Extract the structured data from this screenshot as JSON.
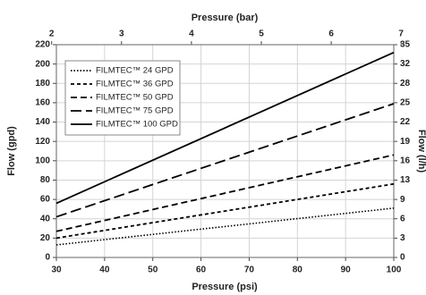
{
  "chart_data": {
    "type": "line",
    "x_label": "Pressure (psi)",
    "x2_label": "Pressure (bar)",
    "y_label": "Flow (gpd)",
    "y2_label": "Flow (l/h)",
    "xlim": [
      30,
      100
    ],
    "xticks": [
      30,
      40,
      50,
      60,
      70,
      80,
      90,
      100
    ],
    "x2lim": [
      2.068,
      6.895
    ],
    "x2ticks": [
      2,
      3,
      4,
      5,
      6,
      7
    ],
    "ylim": [
      0,
      220
    ],
    "yticks": [
      0,
      20,
      40,
      60,
      80,
      100,
      120,
      140,
      160,
      180,
      200,
      220
    ],
    "y2lim": [
      0,
      34.7
    ],
    "y2ticks": [
      {
        "value": 0,
        "label": "0"
      },
      {
        "value": 3.15,
        "label": "3"
      },
      {
        "value": 6.31,
        "label": "6"
      },
      {
        "value": 9.46,
        "label": "9"
      },
      {
        "value": 12.62,
        "label": "13"
      },
      {
        "value": 15.77,
        "label": "16"
      },
      {
        "value": 18.93,
        "label": "19"
      },
      {
        "value": 22.08,
        "label": "22"
      },
      {
        "value": 25.24,
        "label": "25"
      },
      {
        "value": 28.39,
        "label": "28"
      },
      {
        "value": 31.55,
        "label": "32"
      },
      {
        "value": 34.7,
        "label": "35"
      }
    ],
    "grid": true,
    "legend": "upper left",
    "x": [
      30,
      100
    ],
    "series": [
      {
        "name": "FILMTEC™ 24 GPD",
        "color": "#000000",
        "line_style": "dotted",
        "values": [
          13,
          51
        ]
      },
      {
        "name": "FILMTEC™ 36 GPD",
        "color": "#000000",
        "line_style": "short-dash",
        "values": [
          20,
          76
        ]
      },
      {
        "name": "FILMTEC™ 50 GPD",
        "color": "#000000",
        "line_style": "dash",
        "values": [
          27,
          106
        ]
      },
      {
        "name": "FILMTEC™ 75 GPD",
        "color": "#000000",
        "line_style": "long-dash",
        "values": [
          42,
          159
        ]
      },
      {
        "name": "FILMTEC™ 100 GPD",
        "color": "#000000",
        "line_style": "solid",
        "values": [
          56,
          212
        ]
      }
    ]
  }
}
